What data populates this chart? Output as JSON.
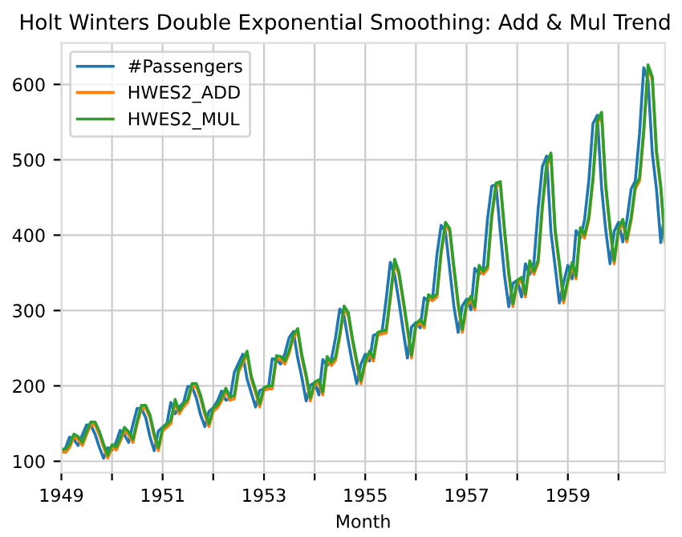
{
  "chart_data": {
    "type": "line",
    "title": "Holt Winters Double Exponential Smoothing: Add & Mul Trend",
    "xlabel": "Month",
    "x": [
      "1949-01",
      "1949-02",
      "1949-03",
      "1949-04",
      "1949-05",
      "1949-06",
      "1949-07",
      "1949-08",
      "1949-09",
      "1949-10",
      "1949-11",
      "1949-12",
      "1950-01",
      "1950-02",
      "1950-03",
      "1950-04",
      "1950-05",
      "1950-06",
      "1950-07",
      "1950-08",
      "1950-09",
      "1950-10",
      "1950-11",
      "1950-12",
      "1951-01",
      "1951-02",
      "1951-03",
      "1951-04",
      "1951-05",
      "1951-06",
      "1951-07",
      "1951-08",
      "1951-09",
      "1951-10",
      "1951-11",
      "1951-12",
      "1952-01",
      "1952-02",
      "1952-03",
      "1952-04",
      "1952-05",
      "1952-06",
      "1952-07",
      "1952-08",
      "1952-09",
      "1952-10",
      "1952-11",
      "1952-12",
      "1953-01",
      "1953-02",
      "1953-03",
      "1953-04",
      "1953-05",
      "1953-06",
      "1953-07",
      "1953-08",
      "1953-09",
      "1953-10",
      "1953-11",
      "1953-12",
      "1954-01",
      "1954-02",
      "1954-03",
      "1954-04",
      "1954-05",
      "1954-06",
      "1954-07",
      "1954-08",
      "1954-09",
      "1954-10",
      "1954-11",
      "1954-12",
      "1955-01",
      "1955-02",
      "1955-03",
      "1955-04",
      "1955-05",
      "1955-06",
      "1955-07",
      "1955-08",
      "1955-09",
      "1955-10",
      "1955-11",
      "1955-12",
      "1956-01",
      "1956-02",
      "1956-03",
      "1956-04",
      "1956-05",
      "1956-06",
      "1956-07",
      "1956-08",
      "1956-09",
      "1956-10",
      "1956-11",
      "1956-12",
      "1957-01",
      "1957-02",
      "1957-03",
      "1957-04",
      "1957-05",
      "1957-06",
      "1957-07",
      "1957-08",
      "1957-09",
      "1957-10",
      "1957-11",
      "1957-12",
      "1958-01",
      "1958-02",
      "1958-03",
      "1958-04",
      "1958-05",
      "1958-06",
      "1958-07",
      "1958-08",
      "1958-09",
      "1958-10",
      "1958-11",
      "1958-12",
      "1959-01",
      "1959-02",
      "1959-03",
      "1959-04",
      "1959-05",
      "1959-06",
      "1959-07",
      "1959-08",
      "1959-09",
      "1959-10",
      "1959-11",
      "1959-12",
      "1960-01",
      "1960-02",
      "1960-03",
      "1960-04",
      "1960-05",
      "1960-06",
      "1960-07",
      "1960-08",
      "1960-09",
      "1960-10",
      "1960-11",
      "1960-12"
    ],
    "series": [
      {
        "name": "#Passengers",
        "color": "#1f77b4",
        "values": [
          112,
          118,
          132,
          129,
          121,
          135,
          148,
          148,
          136,
          119,
          104,
          118,
          115,
          126,
          141,
          135,
          125,
          149,
          170,
          170,
          158,
          133,
          114,
          140,
          145,
          150,
          178,
          163,
          172,
          178,
          199,
          199,
          184,
          162,
          146,
          166,
          171,
          180,
          193,
          181,
          183,
          218,
          230,
          242,
          209,
          191,
          172,
          194,
          196,
          196,
          236,
          235,
          229,
          243,
          264,
          272,
          237,
          211,
          180,
          201,
          204,
          188,
          235,
          227,
          234,
          264,
          302,
          293,
          259,
          229,
          203,
          229,
          242,
          233,
          267,
          269,
          270,
          315,
          364,
          347,
          312,
          274,
          237,
          278,
          284,
          277,
          317,
          313,
          318,
          374,
          413,
          405,
          355,
          306,
          271,
          306,
          315,
          301,
          356,
          348,
          355,
          422,
          465,
          467,
          404,
          347,
          305,
          336,
          340,
          318,
          362,
          348,
          363,
          435,
          491,
          505,
          404,
          359,
          310,
          337,
          360,
          342,
          406,
          396,
          420,
          472,
          548,
          559,
          463,
          407,
          362,
          405,
          417,
          391,
          419,
          461,
          472,
          535,
          622,
          606,
          508,
          461,
          390,
          432
        ]
      },
      {
        "name": "HWES2_ADD",
        "color": "#ff7f0e",
        "values": [
          112,
          112,
          118,
          132,
          129,
          121,
          135,
          148,
          148,
          136,
          119,
          104,
          118,
          115,
          126,
          141,
          135,
          125,
          149,
          170,
          170,
          158,
          133,
          114,
          140,
          145,
          150,
          178,
          163,
          172,
          178,
          199,
          199,
          184,
          162,
          146,
          166,
          171,
          180,
          193,
          181,
          183,
          218,
          230,
          242,
          209,
          191,
          172,
          194,
          196,
          196,
          236,
          235,
          229,
          243,
          264,
          272,
          237,
          211,
          180,
          201,
          204,
          188,
          235,
          227,
          234,
          264,
          302,
          293,
          259,
          229,
          203,
          229,
          242,
          233,
          267,
          269,
          270,
          315,
          364,
          347,
          312,
          274,
          237,
          278,
          284,
          277,
          317,
          313,
          318,
          374,
          413,
          405,
          355,
          306,
          271,
          306,
          315,
          301,
          356,
          348,
          355,
          422,
          465,
          467,
          404,
          347,
          305,
          336,
          340,
          318,
          362,
          348,
          363,
          435,
          491,
          505,
          404,
          359,
          310,
          337,
          360,
          342,
          406,
          396,
          420,
          472,
          548,
          559,
          463,
          407,
          362,
          405,
          417,
          391,
          419,
          461,
          472,
          535,
          622,
          606,
          508,
          461,
          390
        ]
      },
      {
        "name": "HWES2_MUL",
        "color": "#2ca02c",
        "values": [
          116,
          116,
          122,
          136,
          133,
          125,
          139,
          152,
          152,
          140,
          123,
          108,
          122,
          119,
          130,
          145,
          139,
          129,
          153,
          174,
          174,
          162,
          137,
          118,
          144,
          149,
          154,
          182,
          167,
          176,
          182,
          203,
          203,
          188,
          166,
          150,
          170,
          175,
          184,
          197,
          185,
          187,
          222,
          234,
          246,
          213,
          195,
          176,
          198,
          200,
          200,
          240,
          239,
          233,
          247,
          268,
          276,
          241,
          215,
          184,
          205,
          208,
          192,
          239,
          231,
          238,
          268,
          306,
          297,
          263,
          233,
          207,
          233,
          246,
          237,
          271,
          273,
          274,
          319,
          368,
          351,
          316,
          278,
          241,
          282,
          288,
          281,
          321,
          317,
          322,
          378,
          417,
          409,
          359,
          310,
          275,
          310,
          319,
          305,
          360,
          352,
          359,
          426,
          469,
          471,
          408,
          351,
          309,
          340,
          344,
          322,
          366,
          352,
          367,
          439,
          495,
          509,
          408,
          363,
          314,
          341,
          364,
          346,
          410,
          400,
          424,
          476,
          552,
          563,
          467,
          411,
          366,
          409,
          421,
          395,
          423,
          465,
          476,
          539,
          626,
          610,
          512,
          465,
          394
        ]
      }
    ],
    "xlim": [
      "1949-01",
      "1960-12"
    ],
    "xticks": [
      {
        "value": "1949-01",
        "label": "1949"
      },
      {
        "value": "1950-01",
        "label": null
      },
      {
        "value": "1951-01",
        "label": "1951"
      },
      {
        "value": "1952-01",
        "label": null
      },
      {
        "value": "1953-01",
        "label": "1953"
      },
      {
        "value": "1954-01",
        "label": null
      },
      {
        "value": "1955-01",
        "label": "1955"
      },
      {
        "value": "1956-01",
        "label": null
      },
      {
        "value": "1957-01",
        "label": "1957"
      },
      {
        "value": "1958-01",
        "label": null
      },
      {
        "value": "1959-01",
        "label": "1959"
      },
      {
        "value": "1960-01",
        "label": null
      }
    ],
    "ylim": [
      85,
      655
    ],
    "yticks": [
      100,
      200,
      300,
      400,
      500,
      600
    ],
    "grid": true,
    "legend": "top left"
  }
}
